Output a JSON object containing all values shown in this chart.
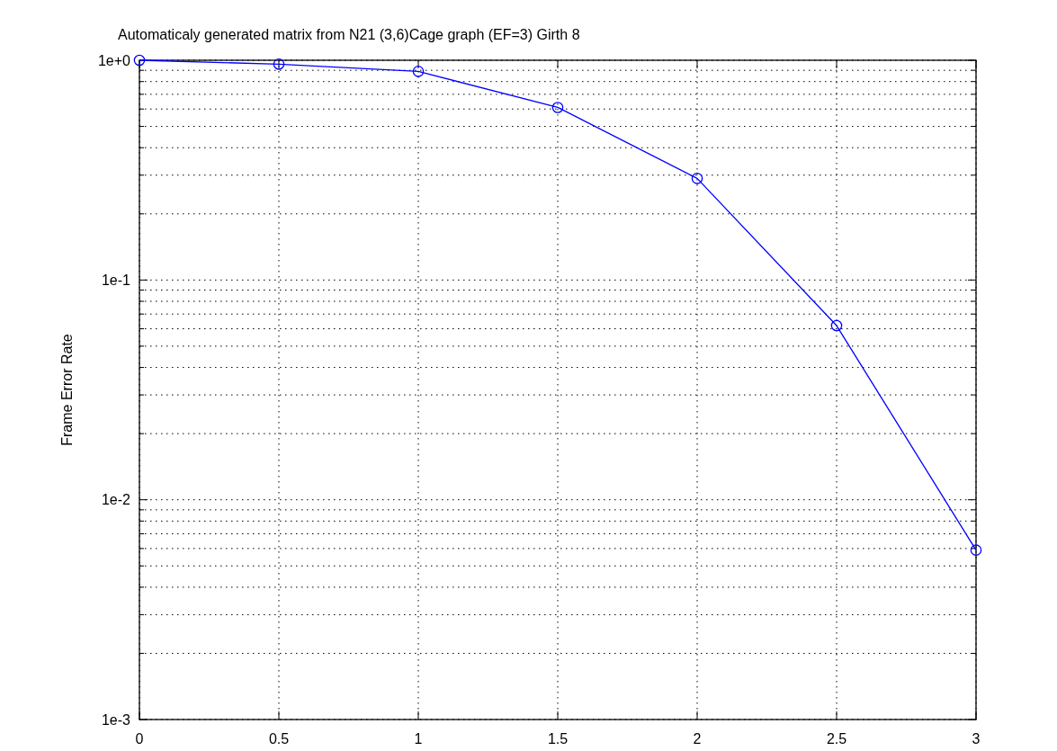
{
  "chart_data": {
    "type": "line",
    "title": "Automaticaly generated matrix from N21 (3,6)Cage graph (EF=3) Girth 8",
    "ylabel": "Frame Error Rate",
    "x": [
      0,
      0.5,
      1,
      1.5,
      2,
      2.5,
      3
    ],
    "series": [
      {
        "color": "#0000ff",
        "values": [
          1,
          0.96,
          0.89,
          0.61,
          0.29,
          0.062,
          0.0059
        ]
      }
    ],
    "xlim": [
      0,
      3
    ],
    "xticks": [
      0,
      0.5,
      1,
      1.5,
      2,
      2.5,
      3
    ],
    "ylim": [
      0.001,
      1
    ],
    "yticks": [
      {
        "value": 0.001,
        "label": "1e-3"
      },
      {
        "value": 0.002,
        "label": null
      },
      {
        "value": 0.003,
        "label": null
      },
      {
        "value": 0.004,
        "label": null
      },
      {
        "value": 0.005,
        "label": null
      },
      {
        "value": 0.006,
        "label": null
      },
      {
        "value": 0.007,
        "label": null
      },
      {
        "value": 0.008,
        "label": null
      },
      {
        "value": 0.009,
        "label": null
      },
      {
        "value": 0.01,
        "label": "1e-2"
      },
      {
        "value": 0.02,
        "label": null
      },
      {
        "value": 0.03,
        "label": null
      },
      {
        "value": 0.04,
        "label": null
      },
      {
        "value": 0.05,
        "label": null
      },
      {
        "value": 0.06,
        "label": null
      },
      {
        "value": 0.07,
        "label": null
      },
      {
        "value": 0.08,
        "label": null
      },
      {
        "value": 0.09,
        "label": null
      },
      {
        "value": 0.1,
        "label": "1e-1"
      },
      {
        "value": 0.2,
        "label": null
      },
      {
        "value": 0.3,
        "label": null
      },
      {
        "value": 0.4,
        "label": null
      },
      {
        "value": 0.5,
        "label": null
      },
      {
        "value": 0.6,
        "label": null
      },
      {
        "value": 0.7,
        "label": null
      },
      {
        "value": 0.8,
        "label": null
      },
      {
        "value": 0.9,
        "label": null
      },
      {
        "value": 1,
        "label": "1e+0"
      }
    ],
    "log": "y",
    "grid": true,
    "marker": "circle",
    "line_style": "solid"
  }
}
